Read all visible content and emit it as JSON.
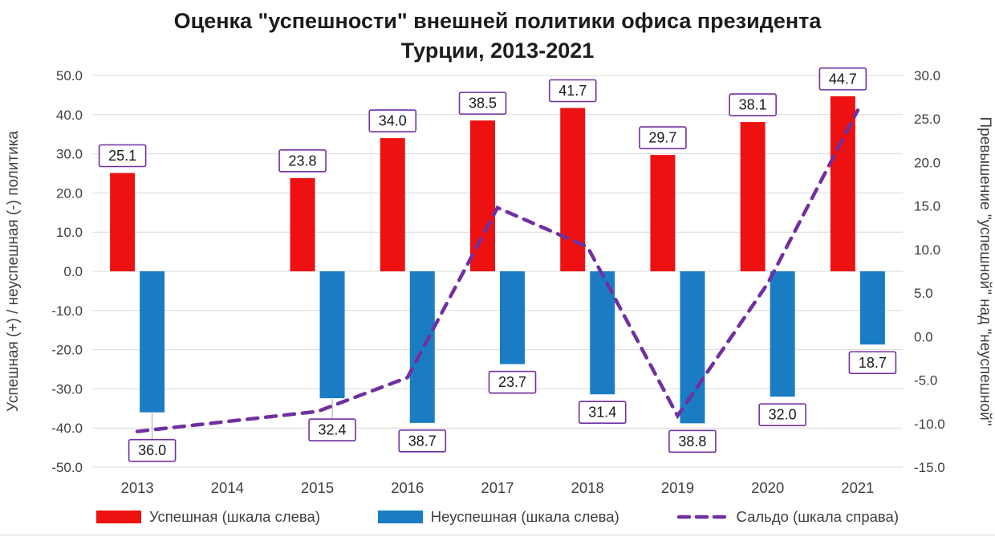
{
  "title": {
    "line1": "Оценка \"успешности\" внешней политики офиса президента",
    "line2": "Турции, 2013-2021"
  },
  "chart_data": {
    "type": "bar",
    "subtype": "combo-bar-line",
    "title": "Оценка \"успешности\" внешней политики офиса президента Турции, 2013-2021",
    "categories": [
      "2013",
      "2014",
      "2015",
      "2016",
      "2017",
      "2018",
      "2019",
      "2020",
      "2021"
    ],
    "series": [
      {
        "name": "Успешная (шкала слева)",
        "type": "bar",
        "axis": "left",
        "color": "#ee1111",
        "values": [
          25.1,
          null,
          23.8,
          34.0,
          38.5,
          41.7,
          29.7,
          38.1,
          44.7
        ]
      },
      {
        "name": "Неуспешная (шкала слева)",
        "type": "bar",
        "axis": "left",
        "plotted_as": "negative",
        "color": "#1a7dc4",
        "values": [
          36.0,
          null,
          32.4,
          38.7,
          23.7,
          31.4,
          38.8,
          32.0,
          18.7
        ]
      },
      {
        "name": "Сальдо (шкала справа)",
        "type": "dashed-line",
        "axis": "right",
        "color": "#7030a0",
        "values": [
          -10.9,
          null,
          -8.6,
          -4.7,
          14.8,
          10.3,
          -9.1,
          6.1,
          26.0
        ]
      }
    ],
    "left_axis": {
      "title": "Успешная (+) / неуспешная (-)  политика",
      "min": -50,
      "max": 50,
      "step": 10,
      "tick_labels": [
        "50.0",
        "40.0",
        "30.0",
        "20.0",
        "10.0",
        "0.0",
        "-10.0",
        "-20.0",
        "-30.0",
        "-40.0",
        "-50.0"
      ]
    },
    "right_axis": {
      "title": "Превышение \"успешной\" над \"неуспешной\"",
      "min": -15,
      "max": 30,
      "step": 5,
      "tick_labels": [
        "30.0",
        "25.0",
        "20.0",
        "15.0",
        "10.0",
        "5.0",
        "0.0",
        "-5.0",
        "-10.0",
        "-15.0"
      ]
    },
    "data_label_box_color": "#7030a0",
    "gridlines": "horizontal",
    "legend_position": "bottom"
  }
}
